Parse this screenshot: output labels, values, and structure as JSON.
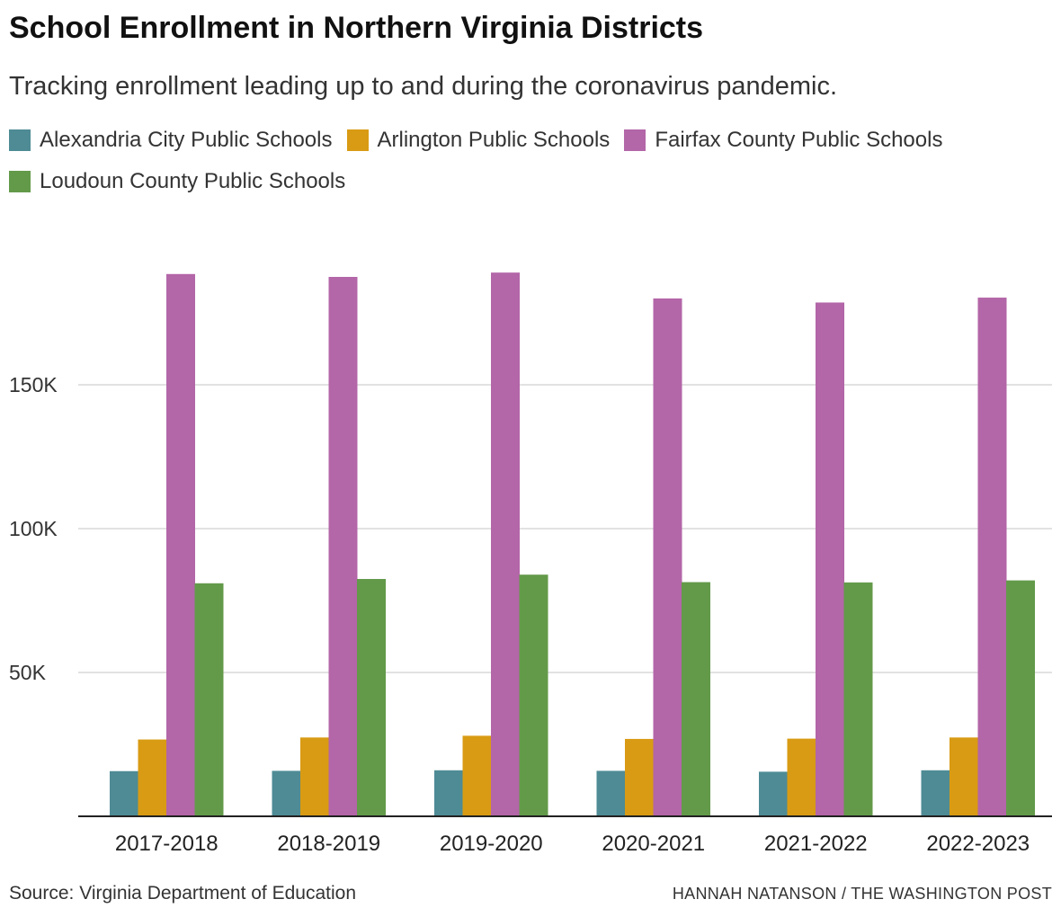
{
  "title": "School Enrollment in Northern Virginia Districts",
  "subtitle": "Tracking enrollment leading up to and during the coronavirus pandemic.",
  "source": "Source: Virginia Department of Education",
  "credit": "HANNAH NATANSON / THE WASHINGTON POST",
  "chart_data": {
    "type": "bar",
    "title": "School Enrollment in Northern Virginia Districts",
    "subtitle": "Tracking enrollment leading up to and during the coronavirus pandemic.",
    "xlabel": "",
    "ylabel": "",
    "categories": [
      "2017-2018",
      "2018-2019",
      "2019-2020",
      "2020-2021",
      "2021-2022",
      "2022-2023"
    ],
    "series": [
      {
        "name": "Alexandria City Public Schools",
        "color": "#4e8b95",
        "values": [
          15700,
          15800,
          16000,
          15800,
          15500,
          16000
        ]
      },
      {
        "name": "Arlington Public Schools",
        "color": "#d99b14",
        "values": [
          26700,
          27400,
          28000,
          26900,
          27000,
          27400
        ]
      },
      {
        "name": "Fairfax County Public Schools",
        "color": "#b366a8",
        "values": [
          188500,
          187500,
          189000,
          180000,
          178600,
          180300
        ]
      },
      {
        "name": "Loudoun County Public Schools",
        "color": "#639a4a",
        "values": [
          81000,
          82500,
          84000,
          81400,
          81300,
          82000
        ]
      }
    ],
    "ylim": [
      0,
      200000
    ],
    "yticks": [
      {
        "value": 50000,
        "label": "50K"
      },
      {
        "value": 100000,
        "label": "100K"
      },
      {
        "value": 150000,
        "label": "150K"
      }
    ],
    "grid": true,
    "legend": "top-left"
  }
}
